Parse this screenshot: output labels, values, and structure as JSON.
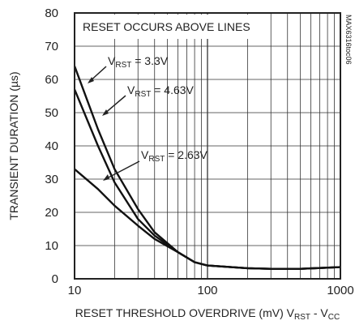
{
  "chart_data": {
    "type": "line",
    "xscale": "log",
    "xlim": [
      10,
      1000
    ],
    "ylim": [
      0,
      80
    ],
    "x_ticks": [
      "10",
      "100",
      "1000"
    ],
    "y_ticks": [
      "0",
      "10",
      "20",
      "30",
      "40",
      "50",
      "60",
      "70",
      "80"
    ],
    "xlabel": "RESET THRESHOLD OVERDRIVE (mV) V",
    "xlabel_sub1": "RST",
    "xlabel_mid": " - V",
    "xlabel_sub2": "CC",
    "ylabel": "TRANSIENT DURATION (µs)",
    "annotation": "RESET OCCURS ABOVE LINES",
    "watermark": "MAX6316toc06",
    "grid": true,
    "series": [
      {
        "name": "VRST = 3.3V",
        "label_main": "V",
        "label_sub": "RST",
        "label_val": " = 3.3V",
        "x": [
          10,
          15,
          20,
          30,
          40,
          60,
          80,
          100,
          150,
          200,
          300,
          500,
          1000
        ],
        "y": [
          64,
          45,
          33,
          21,
          14,
          8,
          5,
          4,
          3.5,
          3.2,
          3,
          3,
          3.5
        ]
      },
      {
        "name": "VRST = 4.63V",
        "label_main": "V",
        "label_sub": "RST",
        "label_val": " = 4.63V",
        "x": [
          10,
          15,
          20,
          30,
          40,
          60,
          80,
          100,
          150,
          200,
          300,
          500,
          1000
        ],
        "y": [
          57,
          40,
          29,
          18,
          13,
          8,
          5,
          4,
          3.5,
          3.2,
          3,
          3,
          3.5
        ]
      },
      {
        "name": "VRST = 2.63V",
        "label_main": "V",
        "label_sub": "RST",
        "label_val": " = 2.63V",
        "x": [
          10,
          15,
          20,
          30,
          40,
          60,
          80,
          100,
          150,
          200,
          300,
          500,
          1000
        ],
        "y": [
          33,
          27,
          22,
          16,
          12,
          8,
          5,
          4,
          3.5,
          3.2,
          3,
          3,
          3.5
        ]
      }
    ]
  }
}
